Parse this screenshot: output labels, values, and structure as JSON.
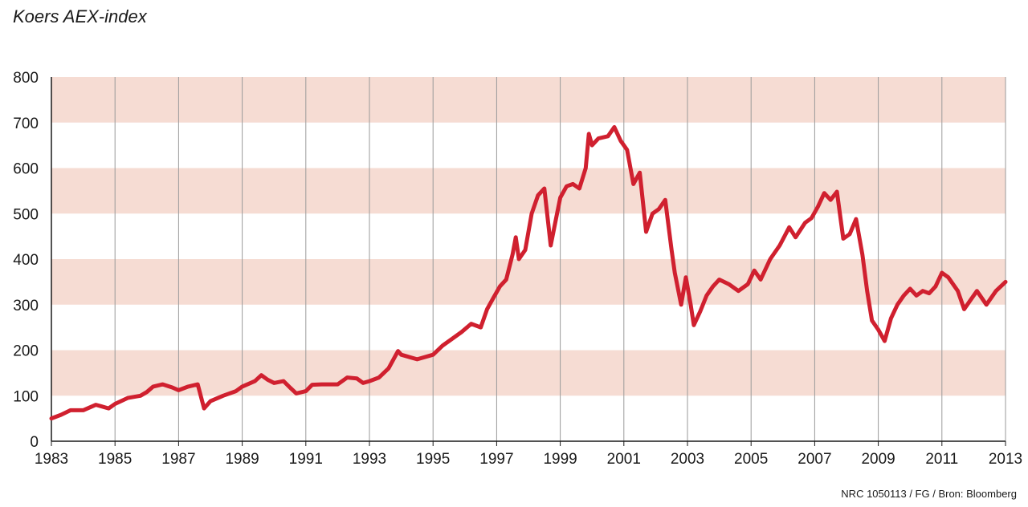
{
  "chart_data": {
    "type": "line",
    "title": "Koers AEX-index",
    "source": "NRC 1050113 / FG / Bron: Bloomberg",
    "xlim": [
      1983,
      2013
    ],
    "ylim": [
      0,
      800
    ],
    "x_ticks": [
      "1983",
      "1985",
      "1987",
      "1989",
      "1991",
      "1993",
      "1995",
      "1997",
      "1999",
      "2001",
      "2003",
      "2005",
      "2007",
      "2009",
      "2011",
      "2013"
    ],
    "y_ticks": [
      "0",
      "100",
      "200",
      "300",
      "400",
      "500",
      "600",
      "700",
      "800"
    ],
    "grid": "vertical lines every 2 years; alternating horizontal bands every 100",
    "colors": {
      "line": "#d0202f",
      "band": "#f6dcd3",
      "grid": "#9a9a9a",
      "axis": "#1a1a1a"
    },
    "series": [
      {
        "values": [
          [
            1983.0,
            50
          ],
          [
            1983.3,
            58
          ],
          [
            1983.6,
            68
          ],
          [
            1984.0,
            68
          ],
          [
            1984.4,
            80
          ],
          [
            1984.8,
            72
          ],
          [
            1985.0,
            82
          ],
          [
            1985.4,
            95
          ],
          [
            1985.8,
            100
          ],
          [
            1986.0,
            108
          ],
          [
            1986.2,
            120
          ],
          [
            1986.5,
            125
          ],
          [
            1986.8,
            118
          ],
          [
            1987.0,
            112
          ],
          [
            1987.3,
            120
          ],
          [
            1987.6,
            125
          ],
          [
            1987.8,
            72
          ],
          [
            1988.0,
            88
          ],
          [
            1988.4,
            100
          ],
          [
            1988.8,
            110
          ],
          [
            1989.0,
            120
          ],
          [
            1989.4,
            132
          ],
          [
            1989.6,
            145
          ],
          [
            1989.8,
            135
          ],
          [
            1990.0,
            128
          ],
          [
            1990.3,
            132
          ],
          [
            1990.5,
            118
          ],
          [
            1990.7,
            105
          ],
          [
            1991.0,
            110
          ],
          [
            1991.2,
            124
          ],
          [
            1991.5,
            125
          ],
          [
            1992.0,
            125
          ],
          [
            1992.3,
            140
          ],
          [
            1992.6,
            138
          ],
          [
            1992.8,
            128
          ],
          [
            1993.0,
            132
          ],
          [
            1993.3,
            140
          ],
          [
            1993.6,
            160
          ],
          [
            1993.9,
            198
          ],
          [
            1994.0,
            190
          ],
          [
            1994.5,
            180
          ],
          [
            1995.0,
            190
          ],
          [
            1995.3,
            210
          ],
          [
            1995.6,
            225
          ],
          [
            1995.9,
            240
          ],
          [
            1996.2,
            258
          ],
          [
            1996.5,
            250
          ],
          [
            1996.7,
            290
          ],
          [
            1996.9,
            315
          ],
          [
            1997.1,
            340
          ],
          [
            1997.3,
            355
          ],
          [
            1997.5,
            410
          ],
          [
            1997.6,
            448
          ],
          [
            1997.7,
            400
          ],
          [
            1997.9,
            420
          ],
          [
            1998.1,
            500
          ],
          [
            1998.3,
            540
          ],
          [
            1998.5,
            555
          ],
          [
            1998.7,
            430
          ],
          [
            1998.9,
            500
          ],
          [
            1999.0,
            535
          ],
          [
            1999.2,
            560
          ],
          [
            1999.4,
            565
          ],
          [
            1999.6,
            555
          ],
          [
            1999.8,
            600
          ],
          [
            1999.9,
            675
          ],
          [
            2000.0,
            650
          ],
          [
            2000.2,
            665
          ],
          [
            2000.5,
            670
          ],
          [
            2000.7,
            690
          ],
          [
            2000.9,
            660
          ],
          [
            2001.1,
            640
          ],
          [
            2001.3,
            565
          ],
          [
            2001.5,
            590
          ],
          [
            2001.7,
            460
          ],
          [
            2001.9,
            500
          ],
          [
            2002.1,
            510
          ],
          [
            2002.3,
            530
          ],
          [
            2002.5,
            420
          ],
          [
            2002.6,
            370
          ],
          [
            2002.8,
            300
          ],
          [
            2002.95,
            360
          ],
          [
            2003.1,
            300
          ],
          [
            2003.2,
            255
          ],
          [
            2003.4,
            285
          ],
          [
            2003.6,
            320
          ],
          [
            2003.8,
            340
          ],
          [
            2004.0,
            355
          ],
          [
            2004.3,
            345
          ],
          [
            2004.6,
            330
          ],
          [
            2004.9,
            345
          ],
          [
            2005.1,
            375
          ],
          [
            2005.3,
            355
          ],
          [
            2005.6,
            400
          ],
          [
            2005.9,
            430
          ],
          [
            2006.2,
            470
          ],
          [
            2006.4,
            448
          ],
          [
            2006.7,
            480
          ],
          [
            2006.9,
            490
          ],
          [
            2007.1,
            515
          ],
          [
            2007.3,
            545
          ],
          [
            2007.5,
            530
          ],
          [
            2007.7,
            548
          ],
          [
            2007.9,
            445
          ],
          [
            2008.1,
            455
          ],
          [
            2008.3,
            488
          ],
          [
            2008.5,
            410
          ],
          [
            2008.65,
            330
          ],
          [
            2008.8,
            265
          ],
          [
            2009.0,
            245
          ],
          [
            2009.2,
            220
          ],
          [
            2009.4,
            270
          ],
          [
            2009.6,
            300
          ],
          [
            2009.8,
            320
          ],
          [
            2010.0,
            335
          ],
          [
            2010.2,
            320
          ],
          [
            2010.4,
            330
          ],
          [
            2010.6,
            325
          ],
          [
            2010.8,
            340
          ],
          [
            2011.0,
            370
          ],
          [
            2011.2,
            360
          ],
          [
            2011.5,
            330
          ],
          [
            2011.7,
            290
          ],
          [
            2011.9,
            310
          ],
          [
            2012.1,
            330
          ],
          [
            2012.4,
            300
          ],
          [
            2012.7,
            330
          ],
          [
            2013.0,
            350
          ]
        ]
      }
    ]
  }
}
